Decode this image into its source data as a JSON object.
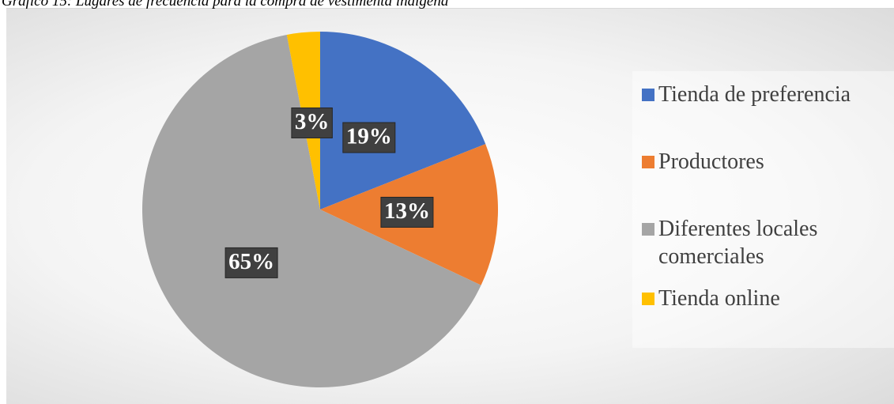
{
  "chart_data": {
    "type": "pie",
    "title": "Gráfico 15: Lugares de frecuencia para la compra de vestimenta indígena",
    "categories": [
      "Tienda de preferencia",
      "Productores",
      "Diferentes locales comerciales",
      "Tienda online"
    ],
    "values": [
      19,
      13,
      65,
      3
    ],
    "value_labels": [
      "19%",
      "13%",
      "65%",
      "3%"
    ],
    "colors": [
      "#4472c4",
      "#ed7d31",
      "#a5a5a5",
      "#ffc000"
    ],
    "legend": "right"
  }
}
